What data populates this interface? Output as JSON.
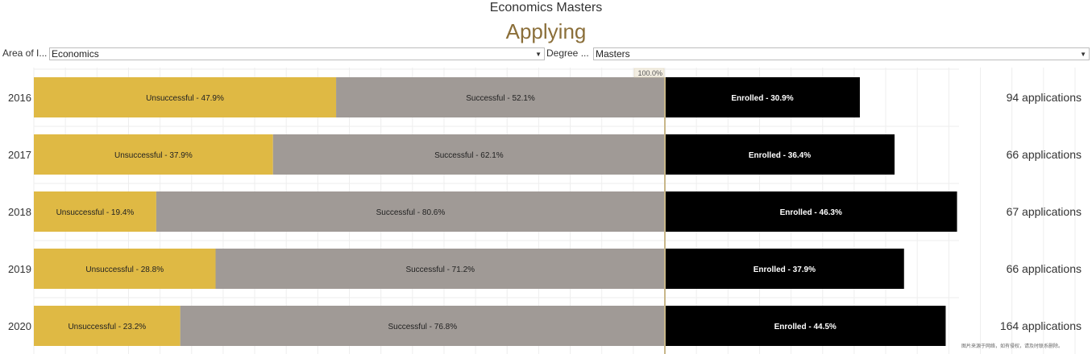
{
  "header": {
    "title": "Economics Masters",
    "subtitle": "Applying"
  },
  "filters": [
    {
      "label": "Area of I...",
      "value": "Economics"
    },
    {
      "label": "Degree ...",
      "value": "Masters"
    }
  ],
  "colors": {
    "unsuccessful": "#dfb944",
    "successful": "#a09a96",
    "enrolled": "#000000",
    "reference_line": "#c8b78a",
    "grid": "#eeeeee"
  },
  "watermark": "图片来源于网络，如有侵权，请及时联系删除。",
  "chart_data": {
    "type": "bar",
    "title": "Applying",
    "categories": [
      "2016",
      "2017",
      "2018",
      "2019",
      "2020"
    ],
    "series": [
      {
        "name": "Unsuccessful",
        "values": [
          47.9,
          37.9,
          19.4,
          28.8,
          23.2
        ]
      },
      {
        "name": "Successful",
        "values": [
          52.1,
          62.1,
          80.6,
          71.2,
          76.8
        ]
      },
      {
        "name": "Enrolled",
        "values": [
          30.9,
          36.4,
          46.3,
          37.9,
          44.5
        ]
      }
    ],
    "labels": {
      "unsuccessful": [
        "Unsuccessful - 47.9%",
        "Unsuccessful - 37.9%",
        "Unsuccessful - 19.4%",
        "Unsuccessful - 28.8%",
        "Unsuccessful - 23.2%"
      ],
      "successful": [
        "Successful - 52.1%",
        "Successful - 62.1%",
        "Successful - 80.6%",
        "Successful - 71.2%",
        "Successful - 76.8%"
      ],
      "enrolled": [
        "Enrolled - 30.9%",
        "Enrolled - 36.4%",
        "Enrolled - 46.3%",
        "Enrolled - 37.9%",
        "Enrolled - 44.5%"
      ]
    },
    "applications": [
      "94 applications",
      "66 applications",
      "67 applications",
      "66 applications",
      "164 applications"
    ],
    "reference_line": {
      "value": 100,
      "label": "100.0%"
    },
    "xlim": [
      0,
      170
    ],
    "grid": true
  }
}
